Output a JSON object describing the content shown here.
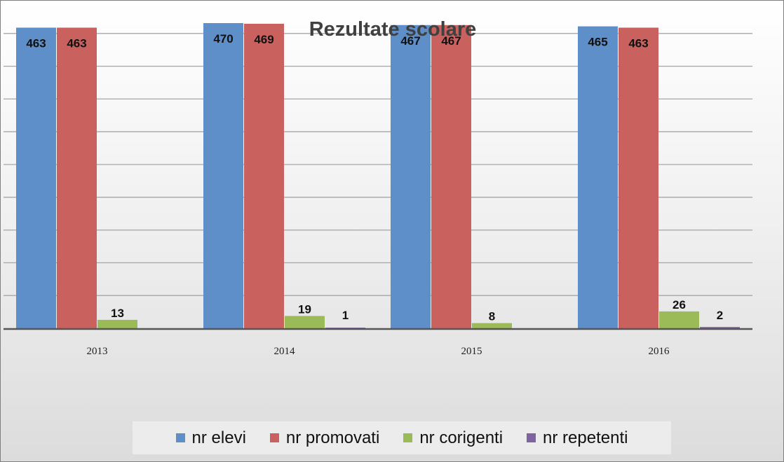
{
  "chart_data": {
    "type": "bar",
    "title": "Rezultate scolare",
    "categories": [
      "2013",
      "2014",
      "2015",
      "2016"
    ],
    "series": [
      {
        "name": "nr elevi",
        "color": "#5f8fc9",
        "values": [
          463,
          470,
          467,
          465
        ]
      },
      {
        "name": "nr promovati",
        "color": "#c9615f",
        "values": [
          463,
          469,
          467,
          463
        ]
      },
      {
        "name": "nr corigenti",
        "color": "#9bbb59",
        "values": [
          13,
          19,
          8,
          26
        ]
      },
      {
        "name": "nr repetenti",
        "color": "#8064a2",
        "values": [
          0,
          1,
          0,
          2
        ]
      }
    ],
    "data_labels": [
      [
        "463",
        "463",
        "13",
        ""
      ],
      [
        "470",
        "469",
        "19",
        "1"
      ],
      [
        "467",
        "467",
        "8",
        ""
      ],
      [
        "465",
        "463",
        "26",
        "2"
      ]
    ],
    "ylim": [
      0,
      470
    ],
    "grid": true,
    "legend_position": "bottom"
  }
}
